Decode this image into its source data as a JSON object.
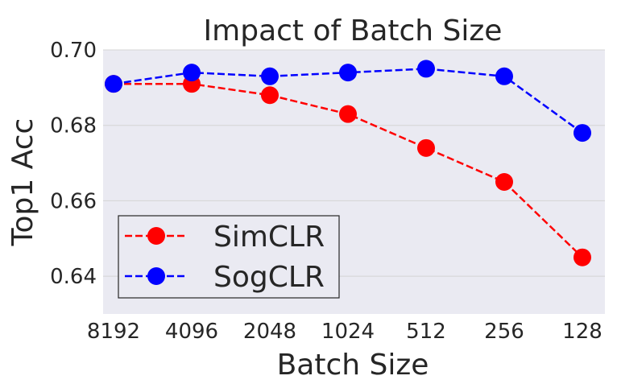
{
  "chart_data": {
    "type": "line",
    "title": "Impact of Batch Size",
    "xlabel": "Batch Size",
    "ylabel": "Top1 Acc",
    "categories": [
      "8192",
      "4096",
      "2048",
      "1024",
      "512",
      "256",
      "128"
    ],
    "ylim": [
      0.63,
      0.7
    ],
    "yticks": [
      0.64,
      0.66,
      0.68,
      0.7
    ],
    "ytick_labels": [
      "0.64",
      "0.66",
      "0.68",
      "0.70"
    ],
    "grid": true,
    "legend_position": "lower-left",
    "series": [
      {
        "name": "SimCLR",
        "color": "#ff0000",
        "marker": "circle",
        "linestyle": "dashed",
        "values": [
          0.691,
          0.691,
          0.688,
          0.683,
          0.674,
          0.665,
          0.645
        ]
      },
      {
        "name": "SogCLR",
        "color": "#0000ff",
        "marker": "circle",
        "linestyle": "dashed",
        "values": [
          0.691,
          0.694,
          0.693,
          0.694,
          0.695,
          0.693,
          0.678
        ]
      }
    ],
    "colors": {
      "plot_background": "#eaeaf2",
      "grid": "#d4d4d4",
      "text": "#262626"
    }
  }
}
